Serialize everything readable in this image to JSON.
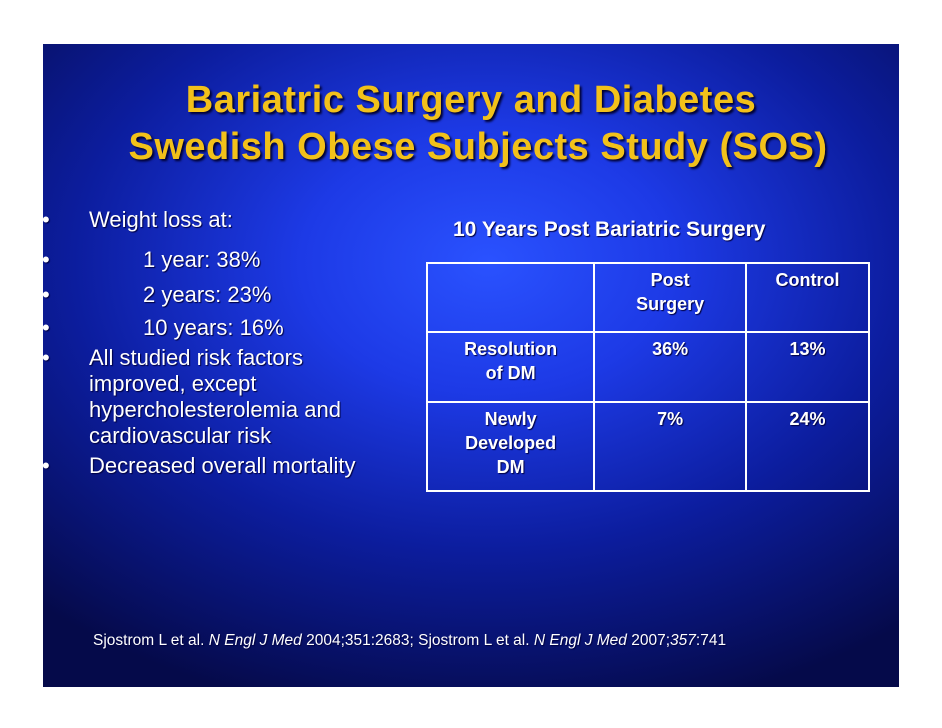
{
  "title": {
    "line1": "Bariatric Surgery and Diabetes",
    "line2": "Swedish Obese Subjects Study (SOS)"
  },
  "bullets": [
    {
      "marker": "•",
      "text": "Weight loss at:"
    },
    {
      "marker": "•",
      "text": "1 year: 38%"
    },
    {
      "marker": "•",
      "text": "2 years: 23%"
    },
    {
      "marker": "•",
      "text": "10 years: 16%"
    },
    {
      "marker": "•",
      "lines": [
        "All studied risk factors",
        "improved, except",
        "hypercholesterolemia and",
        "cardiovascular risk"
      ]
    },
    {
      "marker": "•",
      "text": "Decreased overall mortality"
    }
  ],
  "table": {
    "caption": "10 Years Post Bariatric Surgery",
    "header": {
      "col1": "",
      "col2_line1": "Post",
      "col2_line2": "Surgery",
      "col3": "Control"
    },
    "rows": [
      {
        "label_line1": "Resolution",
        "label_line2": "of DM",
        "label_line3": "",
        "post": "36%",
        "control": "13%"
      },
      {
        "label_line1": "Newly",
        "label_line2": "Developed",
        "label_line3": "DM",
        "post": "7%",
        "control": "24%"
      }
    ]
  },
  "citation": {
    "part1": "Sjostrom L et al. ",
    "journal1": "N Engl J Med",
    "part2": " 2004;351:2683; Sjostrom L et al. ",
    "journal2": "N Engl J Med",
    "part3": " 2007;",
    "volume2": "357",
    "part4": ":741"
  },
  "colors": {
    "title": "#f2c11a",
    "text": "#ffffff",
    "background_center": "#2a52ff",
    "background_edge": "#050a4a"
  }
}
